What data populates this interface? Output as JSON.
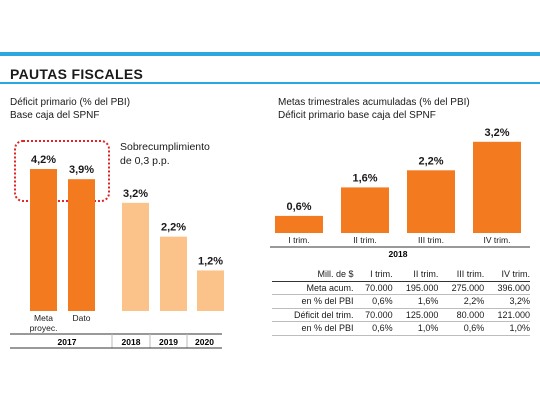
{
  "title": "PAUTAS FISCALES",
  "left": {
    "subtitle_line1": "Déficit primario (% del PBI)",
    "subtitle_line2": "Base caja del SPNF",
    "annotation_line1": "Sobrecumplimiento",
    "annotation_line2": "de 0,3 p.p."
  },
  "right": {
    "subtitle_line1": "Metas trimestrales acumuladas (% del PBI)",
    "subtitle_line2": "Déficit primario base caja del SPNF"
  },
  "colors": {
    "dark_orange": "#f47a1f",
    "light_orange": "#fbc289",
    "accent_blue": "#2aa8e0",
    "annotation_red": "#e02424"
  },
  "chart_data": [
    {
      "type": "bar",
      "unit": "% del PBI",
      "bars": [
        {
          "label_line1": "Meta",
          "label_line2": "proyec.",
          "value": 4.2,
          "value_label": "4,2%",
          "group": "2017",
          "style": "dark"
        },
        {
          "label_line1": "Dato",
          "label_line2": "",
          "value": 3.9,
          "value_label": "3,9%",
          "group": "2017",
          "style": "dark"
        },
        {
          "label_line1": "",
          "label_line2": "",
          "value": 3.2,
          "value_label": "3,2%",
          "group": "2018",
          "style": "light"
        },
        {
          "label_line1": "",
          "label_line2": "",
          "value": 2.2,
          "value_label": "2,2%",
          "group": "2019",
          "style": "light"
        },
        {
          "label_line1": "",
          "label_line2": "",
          "value": 1.2,
          "value_label": "1,2%",
          "group": "2020",
          "style": "light"
        }
      ],
      "groups": [
        "2017",
        "2018",
        "2019",
        "2020"
      ]
    },
    {
      "type": "bar",
      "unit": "% del PBI",
      "group_label": "2018",
      "categories": [
        "I trim.",
        "II trim.",
        "III trim.",
        "IV trim."
      ],
      "values": [
        0.6,
        1.6,
        2.2,
        3.2
      ],
      "value_labels": [
        "0,6%",
        "1,6%",
        "2,2%",
        "3,2%"
      ]
    },
    {
      "type": "table",
      "columns": [
        "Mill. de $",
        "I trim.",
        "II trim.",
        "III trim.",
        "IV trim."
      ],
      "rows": [
        [
          "Meta acum.",
          "70.000",
          "195.000",
          "275.000",
          "396.000"
        ],
        [
          "en % del PBI",
          "0,6%",
          "1,6%",
          "2,2%",
          "3,2%"
        ],
        [
          "Déficit del trim.",
          "70.000",
          "125.000",
          "80.000",
          "121.000"
        ],
        [
          "en % del PBI",
          "0,6%",
          "1,0%",
          "0,6%",
          "1,0%"
        ]
      ]
    }
  ]
}
